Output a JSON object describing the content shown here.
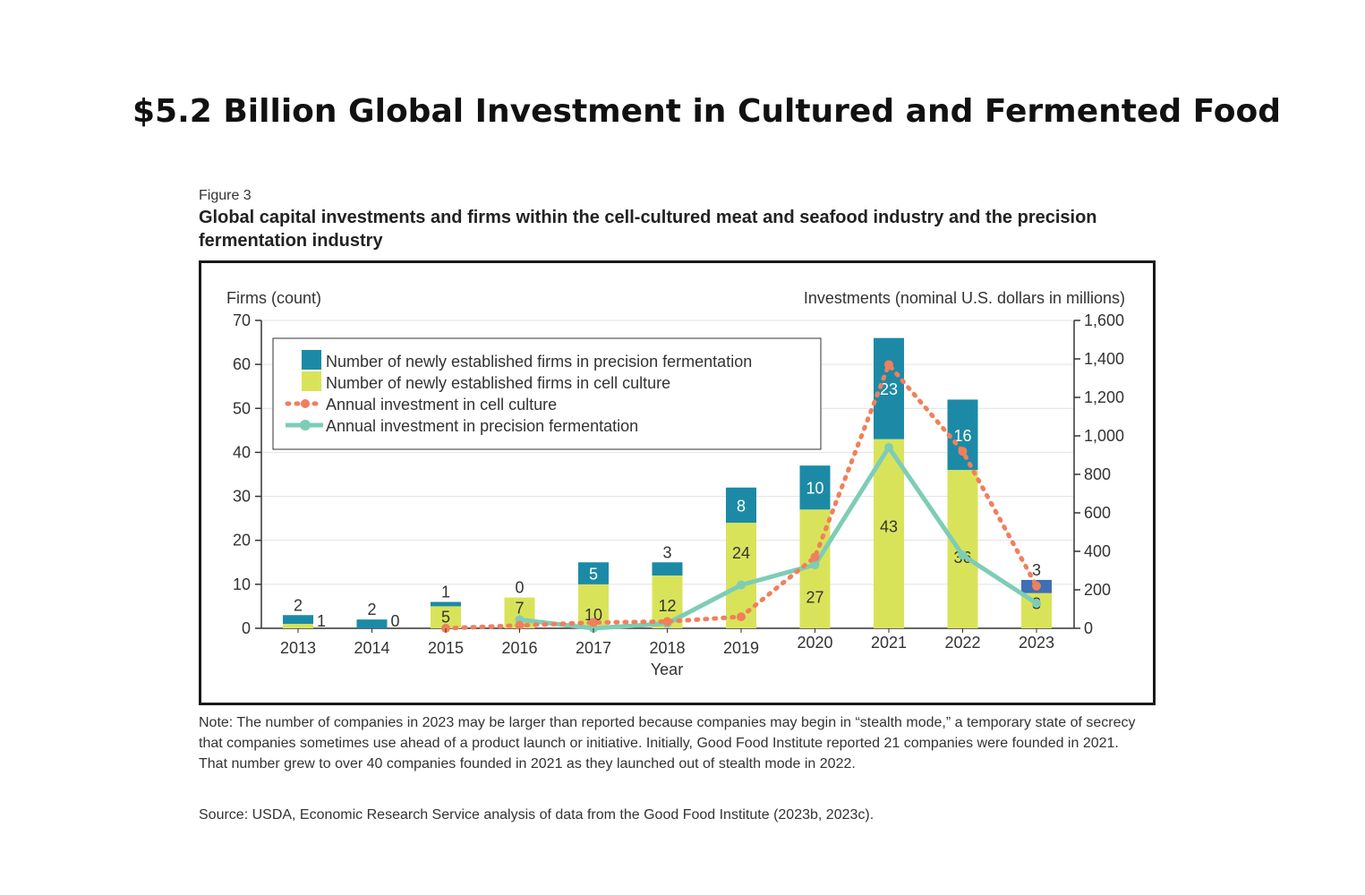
{
  "page": {
    "headline": "$5.2 Billion Global Investment in Cultured and Fermented Food",
    "figure_label": "Figure 3",
    "figure_title": "Global capital investments and firms within the cell-cultured meat and seafood industry and the precision fermentation industry",
    "note": "Note: The number of companies in 2023 may be larger than reported because companies may begin in “stealth mode,” a temporary state of secrecy that companies sometimes use ahead of a product launch or initiative. Initially, Good Food Institute reported 21 companies were founded in 2021. That number grew to over 40 companies founded in 2021 as they launched out of stealth mode in 2022.",
    "source": "Source: USDA, Economic Research Service analysis of data from the Good Food Institute (2023b, 2023c)."
  },
  "chart_data": {
    "type": "bar",
    "title": "",
    "xlabel": "Year",
    "ylabel_left": "Firms (count)",
    "ylabel_right": "Investments (nominal U.S. dollars in millions)",
    "ylim_left": [
      0,
      70
    ],
    "ylim_right": [
      0,
      1600
    ],
    "yticks_left": [
      "0",
      "10",
      "20",
      "30",
      "40",
      "50",
      "60",
      "70"
    ],
    "yticks_right": [
      "0",
      "200",
      "400",
      "600",
      "800",
      "1,000",
      "1,200",
      "1,400",
      "1,600"
    ],
    "categories": [
      "2013",
      "2014",
      "2015",
      "2016",
      "2017",
      "2018",
      "2019",
      "2020",
      "2021",
      "2022",
      "2023"
    ],
    "grid": "horizontal",
    "legend_position": "top-left",
    "series": [
      {
        "name": "Number of newly established firms in precision fermentation",
        "kind": "stacked-bar",
        "axis": "left",
        "color": "#1c8aa6",
        "values": [
          2,
          2,
          1,
          0,
          5,
          3,
          8,
          10,
          23,
          16,
          3
        ]
      },
      {
        "name": "Number of newly established firms in cell culture",
        "kind": "stacked-bar",
        "axis": "left",
        "color": "#d9e35a",
        "values": [
          1,
          0,
          5,
          7,
          10,
          12,
          24,
          27,
          43,
          36,
          8
        ]
      },
      {
        "name": "Annual investment in cell culture",
        "kind": "dotted-line",
        "axis": "right",
        "color": "#f07f5c",
        "values": [
          null,
          null,
          0,
          15,
          30,
          35,
          60,
          370,
          1370,
          920,
          220
        ]
      },
      {
        "name": "Annual investment in precision fermentation",
        "kind": "line",
        "axis": "right",
        "color": "#7dcdb6",
        "values": [
          null,
          null,
          null,
          45,
          0,
          25,
          225,
          330,
          940,
          380,
          130
        ]
      }
    ],
    "colors": {
      "pf_2023": "#3f6fb5"
    }
  }
}
